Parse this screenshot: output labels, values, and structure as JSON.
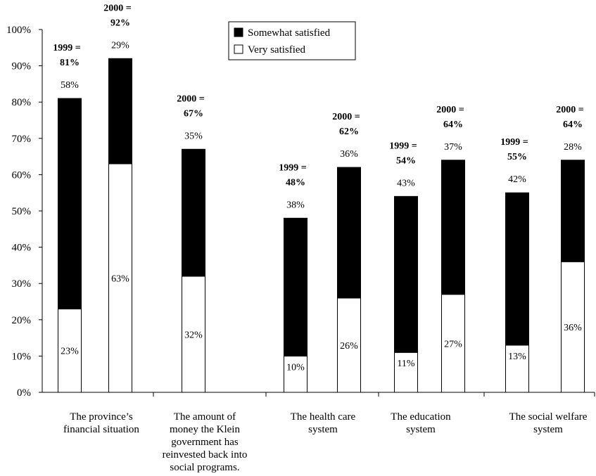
{
  "chart_data": {
    "type": "bar",
    "stacked": true,
    "title": "",
    "xlabel": "",
    "ylabel": "",
    "ylim": [
      0,
      100
    ],
    "yticks": [
      "0%",
      "10%",
      "20%",
      "30%",
      "40%",
      "50%",
      "60%",
      "70%",
      "80%",
      "90%",
      "100%"
    ],
    "grid": false,
    "legend_position": "top-right",
    "legend": [
      {
        "name": "Somewhat satisfied",
        "color": "#000000"
      },
      {
        "name": "Very satisfied",
        "color": "#ffffff"
      }
    ],
    "groups": [
      {
        "label": [
          "The province’s",
          "financial situation"
        ],
        "bars": [
          {
            "very": 23,
            "somewhat": 58,
            "very_label": "23%",
            "somewhat_label": "58%",
            "total_label": [
              "1999 =",
              "81%"
            ]
          },
          {
            "very": 63,
            "somewhat": 29,
            "very_label": "63%",
            "somewhat_label": "29%",
            "total_label": [
              "2000 =",
              "92%"
            ]
          }
        ]
      },
      {
        "label": [
          "The amount of",
          "money the Klein",
          "government has",
          "reinvested back into",
          "social programs."
        ],
        "bars": [
          {
            "very": 32,
            "somewhat": 35,
            "very_label": "32%",
            "somewhat_label": "35%",
            "total_label": [
              "2000 =",
              "67%"
            ]
          }
        ]
      },
      {
        "label": [
          "The health care",
          "system"
        ],
        "bars": [
          {
            "very": 10,
            "somewhat": 38,
            "very_label": "10%",
            "somewhat_label": "38%",
            "total_label": [
              "1999 =",
              "48%"
            ]
          },
          {
            "very": 26,
            "somewhat": 36,
            "very_label": "26%",
            "somewhat_label": "36%",
            "total_label": [
              "2000 =",
              "62%"
            ]
          }
        ]
      },
      {
        "label": [
          "The education",
          "system"
        ],
        "bars": [
          {
            "very": 11,
            "somewhat": 43,
            "very_label": "11%",
            "somewhat_label": "43%",
            "total_label": [
              "1999 =",
              "54%"
            ]
          },
          {
            "very": 27,
            "somewhat": 37,
            "very_label": "27%",
            "somewhat_label": "37%",
            "total_label": [
              "2000 =",
              "64%"
            ]
          }
        ]
      },
      {
        "label": [
          "The social welfare",
          "system"
        ],
        "bars": [
          {
            "very": 13,
            "somewhat": 42,
            "very_label": "13%",
            "somewhat_label": "42%",
            "total_label": [
              "1999 =",
              "55%"
            ]
          },
          {
            "very": 36,
            "somewhat": 28,
            "very_label": "36%",
            "somewhat_label": "28%",
            "total_label": [
              "2000 =",
              "64%"
            ]
          }
        ]
      }
    ]
  }
}
